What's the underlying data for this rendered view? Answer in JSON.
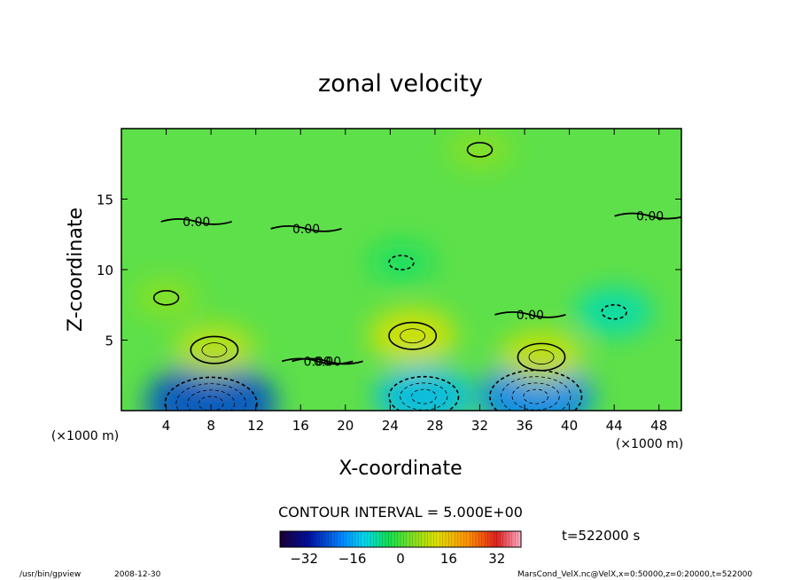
{
  "chart_data": {
    "type": "heatmap",
    "title": "zonal velocity",
    "xlabel": "X-coordinate",
    "ylabel": "Z-coordinate",
    "x_unit_left": "(×1000 m)",
    "x_unit_right": "(×1000 m)",
    "xlim": [
      0,
      50
    ],
    "ylim": [
      0,
      20
    ],
    "x_ticks": [
      4,
      8,
      12,
      16,
      20,
      24,
      28,
      32,
      36,
      40,
      44,
      48
    ],
    "y_ticks": [
      5,
      10,
      15
    ],
    "contour_interval_label": "CONTOUR INTERVAL = 5.000E+00",
    "zero_contour_labels": [
      {
        "x": 6.7,
        "z": 13.4,
        "text": "0.00"
      },
      {
        "x": 16.5,
        "z": 12.9,
        "text": "0.00"
      },
      {
        "x": 47.2,
        "z": 13.8,
        "text": "0.00"
      },
      {
        "x": 17.5,
        "z": 3.5,
        "text": "0.00"
      },
      {
        "x": 18.4,
        "z": 3.5,
        "text": "0.00"
      },
      {
        "x": 36.5,
        "z": 6.8,
        "text": "0.00"
      }
    ],
    "time_label": "t=522000 s",
    "colorbar": {
      "range": [
        -40,
        40
      ],
      "tick_values": [
        -32,
        -16,
        0,
        16,
        32
      ]
    },
    "field_features": [
      {
        "x": 8,
        "z": 0.5,
        "value": -25,
        "note": "negative core"
      },
      {
        "x": 27,
        "z": 1.0,
        "value": -15
      },
      {
        "x": 37,
        "z": 1.0,
        "value": -20
      },
      {
        "x": 44,
        "z": 7.0,
        "value": -9
      },
      {
        "x": 26,
        "z": 5.3,
        "value": 12,
        "note": "positive core"
      },
      {
        "x": 37.5,
        "z": 3.8,
        "value": 11
      },
      {
        "x": 8.3,
        "z": 4.3,
        "value": 10
      },
      {
        "x": 4,
        "z": 8.0,
        "value": 5
      },
      {
        "x": 25,
        "z": 10.5,
        "value": -5
      },
      {
        "x": 32,
        "z": 18.5,
        "value": 5
      }
    ]
  },
  "footer": {
    "program": "/usr/bin/gpview",
    "date": "2008-12-30",
    "source": "MarsCond_VelX.nc@VelX,x=0:50000,z=0:20000,t=522000"
  }
}
